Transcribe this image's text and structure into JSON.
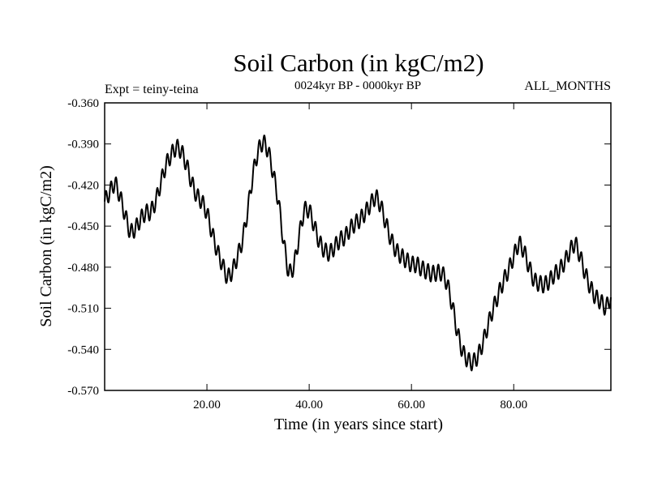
{
  "chart_data": {
    "type": "line",
    "title": "Soil Carbon (in kgC/m2)",
    "subtitle": "0024kyr BP - 0000kyr BP",
    "left_note": "Expt = teiny-teina",
    "right_note": "ALL_MONTHS",
    "xlabel": "Time (in years since start)",
    "ylabel": "Soil Carbon (in kgC/m2)",
    "xlim": [
      0,
      99
    ],
    "ylim": [
      -0.57,
      -0.36
    ],
    "x_ticks": [
      20,
      40,
      60,
      80
    ],
    "x_tick_labels": [
      "20.00",
      "40.00",
      "60.00",
      "80.00"
    ],
    "y_ticks": [
      -0.36,
      -0.39,
      -0.42,
      -0.45,
      -0.48,
      -0.51,
      -0.54,
      -0.57
    ],
    "y_tick_labels": [
      "-0.360",
      "-0.390",
      "-0.420",
      "-0.450",
      "-0.480",
      "-0.510",
      "-0.540",
      "-0.570"
    ],
    "grid": false,
    "series": [
      {
        "name": "Soil Carbon",
        "color": "#000000",
        "seasonal_amplitude": 0.006,
        "x": [
          0,
          1,
          2,
          3,
          4,
          5,
          6,
          7,
          8,
          9,
          10,
          11,
          12,
          13,
          14,
          15,
          16,
          17,
          18,
          19,
          20,
          21,
          22,
          23,
          24,
          25,
          26,
          27,
          28,
          29,
          30,
          31,
          32,
          33,
          34,
          35,
          36,
          37,
          38,
          39,
          40,
          41,
          42,
          43,
          44,
          45,
          46,
          47,
          48,
          49,
          50,
          51,
          52,
          53,
          54,
          55,
          56,
          57,
          58,
          59,
          60,
          61,
          62,
          63,
          64,
          65,
          66,
          67,
          68,
          69,
          70,
          71,
          72,
          73,
          74,
          75,
          76,
          77,
          78,
          79,
          80,
          81,
          82,
          83,
          84,
          85,
          86,
          87,
          88,
          89,
          90,
          91,
          92,
          93,
          94,
          95,
          96,
          97,
          98,
          99
        ],
        "values": [
          -0.432,
          -0.425,
          -0.418,
          -0.428,
          -0.442,
          -0.455,
          -0.452,
          -0.445,
          -0.44,
          -0.44,
          -0.432,
          -0.418,
          -0.405,
          -0.398,
          -0.392,
          -0.395,
          -0.405,
          -0.418,
          -0.428,
          -0.432,
          -0.44,
          -0.455,
          -0.468,
          -0.478,
          -0.488,
          -0.483,
          -0.472,
          -0.46,
          -0.438,
          -0.412,
          -0.395,
          -0.388,
          -0.395,
          -0.412,
          -0.432,
          -0.462,
          -0.485,
          -0.48,
          -0.458,
          -0.438,
          -0.438,
          -0.45,
          -0.462,
          -0.468,
          -0.47,
          -0.465,
          -0.46,
          -0.458,
          -0.452,
          -0.448,
          -0.445,
          -0.44,
          -0.434,
          -0.428,
          -0.435,
          -0.448,
          -0.46,
          -0.468,
          -0.472,
          -0.475,
          -0.478,
          -0.478,
          -0.481,
          -0.483,
          -0.485,
          -0.484,
          -0.484,
          -0.492,
          -0.508,
          -0.528,
          -0.542,
          -0.548,
          -0.55,
          -0.545,
          -0.535,
          -0.522,
          -0.51,
          -0.5,
          -0.49,
          -0.482,
          -0.472,
          -0.462,
          -0.468,
          -0.48,
          -0.49,
          -0.492,
          -0.493,
          -0.49,
          -0.485,
          -0.482,
          -0.476,
          -0.468,
          -0.462,
          -0.472,
          -0.485,
          -0.495,
          -0.502,
          -0.505,
          -0.51,
          -0.502
        ]
      }
    ]
  }
}
